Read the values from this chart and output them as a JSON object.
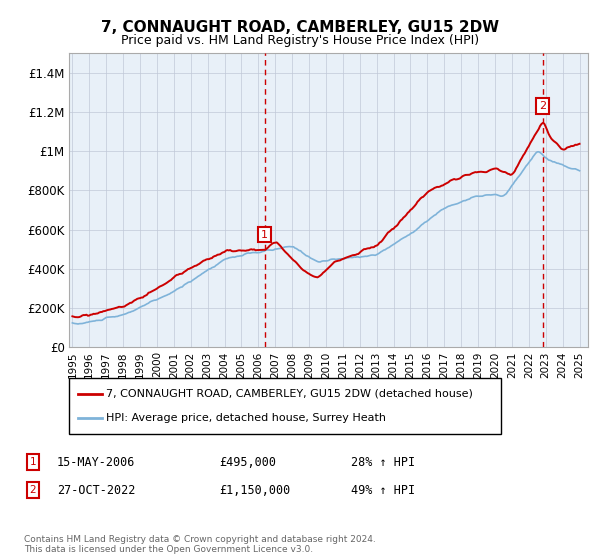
{
  "title": "7, CONNAUGHT ROAD, CAMBERLEY, GU15 2DW",
  "subtitle": "Price paid vs. HM Land Registry's House Price Index (HPI)",
  "legend_line1": "7, CONNAUGHT ROAD, CAMBERLEY, GU15 2DW (detached house)",
  "legend_line2": "HPI: Average price, detached house, Surrey Heath",
  "transaction1_label": "1",
  "transaction1_date": "15-MAY-2006",
  "transaction1_price": "£495,000",
  "transaction1_pct": "28% ↑ HPI",
  "transaction1_x": 2006.37,
  "transaction1_y": 495000,
  "transaction2_label": "2",
  "transaction2_date": "27-OCT-2022",
  "transaction2_price": "£1,150,000",
  "transaction2_pct": "49% ↑ HPI",
  "transaction2_x": 2022.82,
  "transaction2_y": 1150000,
  "footer": "Contains HM Land Registry data © Crown copyright and database right 2024.\nThis data is licensed under the Open Government Licence v3.0.",
  "red_color": "#cc0000",
  "blue_color": "#7fb3d9",
  "plot_bg": "#e8f0f8",
  "grid_color": "#c0c8d8",
  "ylim": [
    0,
    1500000
  ],
  "xlim": [
    1994.8,
    2025.5
  ],
  "yticks": [
    0,
    200000,
    400000,
    600000,
    800000,
    1000000,
    1200000,
    1400000
  ],
  "ytick_labels": [
    "£0",
    "£200K",
    "£400K",
    "£600K",
    "£800K",
    "£1M",
    "£1.2M",
    "£1.4M"
  ],
  "xticks": [
    1995,
    1996,
    1997,
    1998,
    1999,
    2000,
    2001,
    2002,
    2003,
    2004,
    2005,
    2006,
    2007,
    2008,
    2009,
    2010,
    2011,
    2012,
    2013,
    2014,
    2015,
    2016,
    2017,
    2018,
    2019,
    2020,
    2021,
    2022,
    2023,
    2024,
    2025
  ]
}
